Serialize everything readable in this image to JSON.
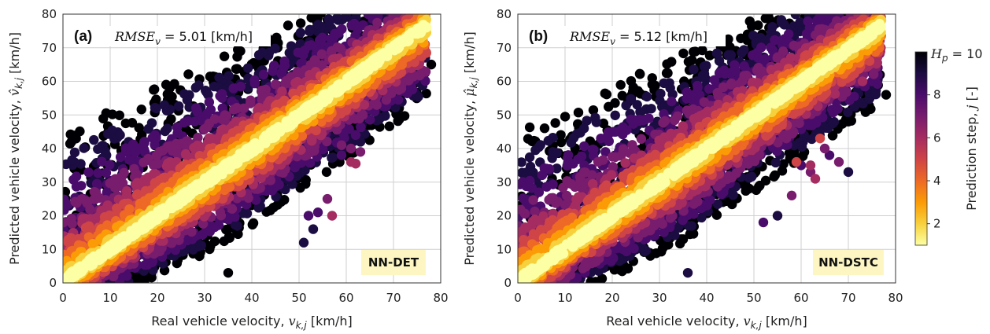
{
  "chart_data": [
    {
      "type": "scatter",
      "panel_label": "(a)",
      "annotation": {
        "prefix": "RMSE",
        "sub": "v",
        "equals": " = 5.01",
        "unit": " [km/h]"
      },
      "model_label": "NN-DET",
      "xlabel": {
        "text": "Real vehicle velocity, ",
        "var": "v",
        "sub": "k,j",
        "unit": " [km/h]"
      },
      "ylabel": {
        "text": "Predicted vehicle velocity, ",
        "var": "v̂",
        "sub": "k,j",
        "unit": " [km/h]"
      },
      "xlim": [
        0,
        80
      ],
      "ylim": [
        0,
        80
      ],
      "xticks": [
        0,
        10,
        20,
        30,
        40,
        50,
        60,
        70,
        80
      ],
      "yticks": [
        0,
        10,
        20,
        30,
        40,
        50,
        60,
        70,
        80
      ],
      "grid": true,
      "color_by": "prediction step j",
      "point_groups": [
        {
          "j": 1,
          "spread_low": 1.5,
          "spread_high": 1.5,
          "outlier_points": []
        },
        {
          "j": 2,
          "spread_low": 3,
          "spread_high": 3.5,
          "outlier_points": []
        },
        {
          "j": 3,
          "spread_low": 5,
          "spread_high": 6,
          "outlier_points": []
        },
        {
          "j": 4,
          "spread_low": 7,
          "spread_high": 9,
          "outlier_points": []
        },
        {
          "j": 5,
          "spread_low": 9,
          "spread_high": 12,
          "outlier_points": []
        },
        {
          "j": 6,
          "spread_low": 11,
          "spread_high": 16,
          "outlier_points": [
            [
              61,
              36
            ],
            [
              57,
              20
            ],
            [
              62,
              35.5
            ]
          ]
        },
        {
          "j": 7,
          "spread_low": 14,
          "spread_high": 22,
          "outlier_points": [
            [
              59,
              41
            ],
            [
              61,
              40
            ],
            [
              63,
              39
            ],
            [
              56,
              25
            ]
          ]
        },
        {
          "j": 8,
          "spread_low": 17,
          "spread_high": 30,
          "outlier_points": [
            [
              62,
              44
            ],
            [
              59,
              38
            ],
            [
              52,
              20
            ],
            [
              54,
              21
            ]
          ]
        },
        {
          "j": 9,
          "spread_low": 20,
          "spread_high": 38,
          "outlier_points": [
            [
              63,
              42
            ],
            [
              51,
              12
            ],
            [
              53,
              16
            ],
            [
              70,
              62
            ]
          ]
        },
        {
          "j": 10,
          "spread_low": 23,
          "spread_high": 45,
          "outlier_points": [
            [
              78,
              65
            ],
            [
              70,
              52
            ],
            [
              72,
              70
            ],
            [
              35,
              3
            ]
          ]
        }
      ]
    },
    {
      "type": "scatter",
      "panel_label": "(b)",
      "annotation": {
        "prefix": "RMSE",
        "sub": "v",
        "equals": " = 5.12",
        "unit": " [km/h]"
      },
      "model_label": "NN-DSTC",
      "xlabel": {
        "text": "Real vehicle velocity, ",
        "var": "v",
        "sub": "k,j",
        "unit": " [km/h]"
      },
      "ylabel": {
        "text": "Predicted vehicle velocity, ",
        "var": "μ̂",
        "sub": "k,j",
        "unit": " [km/h]"
      },
      "xlim": [
        0,
        80
      ],
      "ylim": [
        0,
        80
      ],
      "xticks": [
        0,
        10,
        20,
        30,
        40,
        50,
        60,
        70,
        80
      ],
      "yticks": [
        0,
        10,
        20,
        30,
        40,
        50,
        60,
        70,
        80
      ],
      "grid": true,
      "color_by": "prediction step j",
      "point_groups": [
        {
          "j": 1,
          "spread_low": 1.5,
          "spread_high": 1.5,
          "outlier_points": []
        },
        {
          "j": 2,
          "spread_low": 3,
          "spread_high": 3.5,
          "outlier_points": []
        },
        {
          "j": 3,
          "spread_low": 5,
          "spread_high": 6,
          "outlier_points": []
        },
        {
          "j": 4,
          "spread_low": 7,
          "spread_high": 9,
          "outlier_points": []
        },
        {
          "j": 5,
          "spread_low": 9,
          "spread_high": 12,
          "outlier_points": [
            [
              59,
              36
            ],
            [
              64,
              43
            ]
          ]
        },
        {
          "j": 6,
          "spread_low": 11,
          "spread_high": 16,
          "outlier_points": [
            [
              62,
              35
            ],
            [
              63,
              31
            ],
            [
              73,
              60
            ]
          ]
        },
        {
          "j": 7,
          "spread_low": 14,
          "spread_high": 22,
          "outlier_points": [
            [
              62,
              33
            ],
            [
              65,
              40
            ],
            [
              68,
              36
            ],
            [
              58,
              26
            ]
          ]
        },
        {
          "j": 8,
          "spread_low": 17,
          "spread_high": 30,
          "outlier_points": [
            [
              60,
              35
            ],
            [
              66,
              38
            ],
            [
              75,
              60
            ],
            [
              52,
              18
            ]
          ]
        },
        {
          "j": 9,
          "spread_low": 20,
          "spread_high": 38,
          "outlier_points": [
            [
              70,
              33
            ],
            [
              76,
              59
            ],
            [
              55,
              20
            ],
            [
              36,
              3
            ]
          ]
        },
        {
          "j": 10,
          "spread_low": 23,
          "spread_high": 45,
          "outlier_points": [
            [
              78,
              56
            ],
            [
              71,
              64
            ],
            [
              72,
              70
            ]
          ]
        }
      ]
    }
  ],
  "colorbar": {
    "label_text": "Prediction step, ",
    "label_var": "j",
    "label_unit": " [-]",
    "top_label_var": "H",
    "top_label_sub": "p",
    "top_label_value": " = 10",
    "range": [
      1,
      10
    ],
    "ticks": [
      2,
      4,
      6,
      8
    ],
    "colormap": "inferno_r",
    "stops": [
      "#fcffa4",
      "#f7d13d",
      "#fb9b06",
      "#ed6925",
      "#cf4446",
      "#a52c60",
      "#781c6d",
      "#4a0c6b",
      "#1b0c41",
      "#000004"
    ]
  }
}
